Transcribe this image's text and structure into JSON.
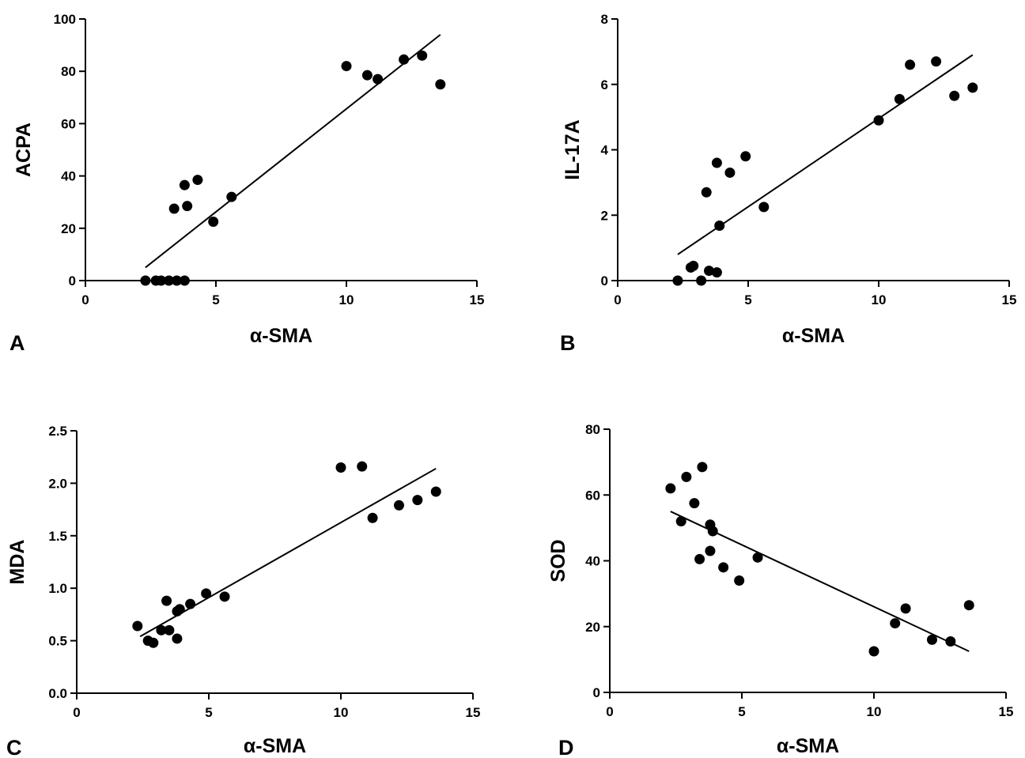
{
  "chart_data": [
    {
      "panel_label": "A",
      "type": "scatter",
      "xlabel": "α-SMA",
      "ylabel": "ACPA",
      "xlim": [
        0,
        15
      ],
      "ylim": [
        0,
        100
      ],
      "xticks": [
        0,
        5,
        10,
        15
      ],
      "yticks": [
        0,
        20,
        40,
        60,
        80,
        100
      ],
      "ytick_labels": [
        "0",
        "20",
        "40",
        "60",
        "80",
        "100"
      ],
      "grid": false,
      "points": [
        [
          2.3,
          0
        ],
        [
          2.7,
          0
        ],
        [
          2.9,
          0
        ],
        [
          3.2,
          0
        ],
        [
          3.5,
          0
        ],
        [
          3.8,
          0
        ],
        [
          3.4,
          27.5
        ],
        [
          3.8,
          36.5
        ],
        [
          3.9,
          28.5
        ],
        [
          4.3,
          38.5
        ],
        [
          4.9,
          22.5
        ],
        [
          5.6,
          32
        ],
        [
          10.0,
          82
        ],
        [
          10.8,
          78.5
        ],
        [
          11.2,
          77
        ],
        [
          12.2,
          84.5
        ],
        [
          12.9,
          86
        ],
        [
          13.6,
          75
        ]
      ],
      "fit_line": [
        [
          2.3,
          5
        ],
        [
          13.6,
          94
        ]
      ]
    },
    {
      "panel_label": "B",
      "type": "scatter",
      "xlabel": "α-SMA",
      "ylabel": "IL-17A",
      "xlim": [
        0,
        15
      ],
      "ylim": [
        0,
        8
      ],
      "xticks": [
        0,
        5,
        10,
        15
      ],
      "yticks": [
        0,
        2,
        4,
        6,
        8
      ],
      "ytick_labels": [
        "0",
        "2",
        "4",
        "6",
        "8"
      ],
      "grid": false,
      "points": [
        [
          2.3,
          0
        ],
        [
          2.8,
          0.4
        ],
        [
          2.9,
          0.45
        ],
        [
          3.2,
          0
        ],
        [
          3.4,
          2.7
        ],
        [
          3.5,
          0.3
        ],
        [
          3.8,
          3.6
        ],
        [
          3.8,
          0.25
        ],
        [
          3.9,
          1.68
        ],
        [
          4.3,
          3.3
        ],
        [
          4.9,
          3.8
        ],
        [
          5.6,
          2.25
        ],
        [
          10.0,
          4.9
        ],
        [
          10.8,
          5.55
        ],
        [
          11.2,
          6.6
        ],
        [
          12.2,
          6.7
        ],
        [
          12.9,
          5.65
        ],
        [
          13.6,
          5.9
        ]
      ],
      "fit_line": [
        [
          2.3,
          0.8
        ],
        [
          13.6,
          6.9
        ]
      ]
    },
    {
      "panel_label": "C",
      "type": "scatter",
      "xlabel": "α-SMA",
      "ylabel": "MDA",
      "xlim": [
        0,
        15
      ],
      "ylim": [
        0,
        2.5
      ],
      "xticks": [
        0,
        5,
        10,
        15
      ],
      "yticks": [
        0,
        0.5,
        1.0,
        1.5,
        2.0,
        2.5
      ],
      "ytick_labels": [
        "0.0",
        "0.5",
        "1.0",
        "1.5",
        "2.0",
        "2.5"
      ],
      "grid": false,
      "points": [
        [
          2.3,
          0.64
        ],
        [
          2.7,
          0.5
        ],
        [
          2.9,
          0.48
        ],
        [
          3.2,
          0.6
        ],
        [
          3.4,
          0.88
        ],
        [
          3.5,
          0.6
        ],
        [
          3.8,
          0.52
        ],
        [
          3.8,
          0.78
        ],
        [
          3.9,
          0.8
        ],
        [
          4.3,
          0.85
        ],
        [
          4.9,
          0.95
        ],
        [
          5.6,
          0.92
        ],
        [
          10.0,
          2.15
        ],
        [
          10.8,
          2.16
        ],
        [
          11.2,
          1.67
        ],
        [
          12.2,
          1.79
        ],
        [
          12.9,
          1.84
        ],
        [
          13.6,
          1.92
        ]
      ],
      "fit_line": [
        [
          2.4,
          0.54
        ],
        [
          13.6,
          2.14
        ]
      ]
    },
    {
      "panel_label": "D",
      "type": "scatter",
      "xlabel": "α-SMA",
      "ylabel": "SOD",
      "xlim": [
        0,
        15
      ],
      "ylim": [
        0,
        80
      ],
      "xticks": [
        0,
        5,
        10,
        15
      ],
      "yticks": [
        0,
        20,
        40,
        60,
        80
      ],
      "ytick_labels": [
        "0",
        "20",
        "40",
        "60",
        "80"
      ],
      "grid": false,
      "points": [
        [
          2.3,
          62
        ],
        [
          2.7,
          52
        ],
        [
          2.9,
          65.5
        ],
        [
          3.2,
          57.5
        ],
        [
          3.4,
          40.5
        ],
        [
          3.5,
          68.5
        ],
        [
          3.8,
          43
        ],
        [
          3.8,
          51
        ],
        [
          3.9,
          49
        ],
        [
          4.3,
          38
        ],
        [
          4.9,
          34
        ],
        [
          5.6,
          41
        ],
        [
          10.0,
          12.5
        ],
        [
          10.8,
          21
        ],
        [
          11.2,
          25.5
        ],
        [
          12.2,
          16
        ],
        [
          12.9,
          15.5
        ],
        [
          13.6,
          26.5
        ]
      ],
      "fit_line": [
        [
          2.3,
          55
        ],
        [
          13.6,
          12.5
        ]
      ]
    }
  ]
}
